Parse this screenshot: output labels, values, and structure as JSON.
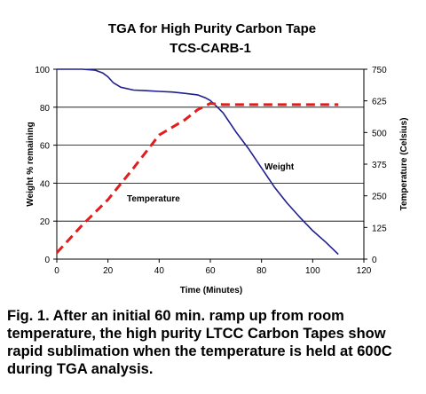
{
  "chart_data": {
    "type": "line",
    "title": "TGA for High Purity Carbon Tape",
    "subtitle": "TCS-CARB-1",
    "xlabel": "Time (Minutes)",
    "ylabel": "Weight % remaining",
    "y2label": "Temperature (Celsius)",
    "xlim": [
      0,
      120
    ],
    "ylim": [
      0,
      100
    ],
    "y2lim": [
      0,
      750
    ],
    "xticks": [
      0,
      20,
      40,
      60,
      80,
      100,
      120
    ],
    "yticks": [
      0,
      20,
      40,
      60,
      80,
      100
    ],
    "y2ticks": [
      0,
      125,
      250,
      375,
      500,
      625,
      750
    ],
    "grid": "horizontal",
    "series": [
      {
        "name": "Weight",
        "axis": "left",
        "color": "#1f1f8f",
        "style": "solid",
        "x": [
          0,
          5,
          10,
          15,
          18,
          20,
          22,
          25,
          30,
          35,
          40,
          45,
          50,
          55,
          58,
          60,
          62,
          65,
          68,
          70,
          75,
          80,
          85,
          90,
          95,
          100,
          105,
          110
        ],
        "y": [
          100,
          100,
          100,
          99.5,
          98,
          96,
          93,
          90.5,
          89,
          88.7,
          88.3,
          88,
          87.3,
          86.5,
          85,
          83.5,
          81,
          77,
          71,
          67,
          58,
          48,
          38,
          29.5,
          22,
          15,
          9,
          2.5
        ]
      },
      {
        "name": "Temperature",
        "axis": "right",
        "color": "#e01e1e",
        "style": "dashed",
        "x": [
          0,
          10,
          20,
          30,
          40,
          50,
          55,
          60,
          65,
          70,
          80,
          90,
          100,
          110
        ],
        "y": [
          25,
          135,
          235,
          360,
          490,
          550,
          590,
          615,
          610,
          610,
          610,
          610,
          610,
          610
        ]
      }
    ],
    "annotations": [
      {
        "text": "Weight",
        "series": "Weight"
      },
      {
        "text": "Temperature",
        "series": "Temperature"
      }
    ]
  },
  "caption": "Fig. 1.  After an initial 60 min. ramp up from room temperature, the high purity LTCC Carbon Tapes show rapid sublimation when the temperature is held at 600C during TGA analysis."
}
